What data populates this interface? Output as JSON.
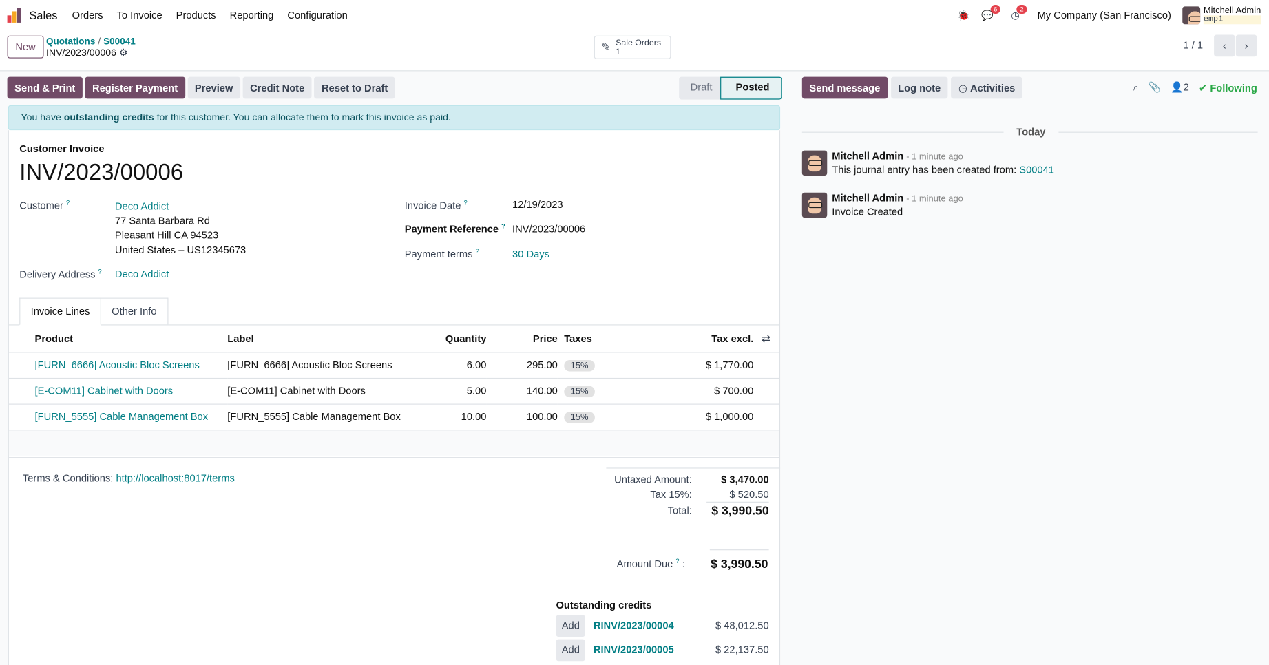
{
  "nav": {
    "app": "Sales",
    "menus": [
      "Orders",
      "To Invoice",
      "Products",
      "Reporting",
      "Configuration"
    ],
    "messages_count": "6",
    "activities_count": "2",
    "company": "My Company (San Francisco)",
    "user": "Mitchell Admin",
    "db": "emp1"
  },
  "control": {
    "new_label": "New",
    "breadcrumb": [
      "Quotations",
      "S00041"
    ],
    "current": "INV/2023/00006",
    "smart_button": {
      "label": "Sale Orders",
      "count": "1"
    },
    "pager": "1 / 1"
  },
  "actions": [
    "Send & Print",
    "Register Payment",
    "Preview",
    "Credit Note",
    "Reset to Draft"
  ],
  "status": {
    "steps": [
      "Draft",
      "Posted"
    ],
    "current": "Posted"
  },
  "alert": {
    "pre": "You have ",
    "bold": "outstanding credits",
    "post": " for this customer. You can allocate them to mark this invoice as paid."
  },
  "invoice": {
    "type": "Customer Invoice",
    "number": "INV/2023/00006",
    "customer_label": "Customer",
    "customer": "Deco Addict",
    "address": [
      "77 Santa Barbara Rd",
      "Pleasant Hill CA 94523",
      "United States – US12345673"
    ],
    "delivery_label": "Delivery Address",
    "delivery": "Deco Addict",
    "date_label": "Invoice Date",
    "date": "12/19/2023",
    "ref_label": "Payment Reference",
    "ref": "INV/2023/00006",
    "terms_label": "Payment terms",
    "terms": "30 Days"
  },
  "tabs": [
    "Invoice Lines",
    "Other Info"
  ],
  "lines": {
    "headers": [
      "Product",
      "Label",
      "Quantity",
      "Price",
      "Taxes",
      "Tax excl."
    ],
    "rows": [
      {
        "product": "[FURN_6666] Acoustic Bloc Screens",
        "label": "[FURN_6666] Acoustic Bloc Screens",
        "qty": "6.00",
        "price": "295.00",
        "tax": "15%",
        "subtotal": "$ 1,770.00"
      },
      {
        "product": "[E-COM11] Cabinet with Doors",
        "label": "[E-COM11] Cabinet with Doors",
        "qty": "5.00",
        "price": "140.00",
        "tax": "15%",
        "subtotal": "$ 700.00"
      },
      {
        "product": "[FURN_5555] Cable Management Box",
        "label": "[FURN_5555] Cable Management Box",
        "qty": "10.00",
        "price": "100.00",
        "tax": "15%",
        "subtotal": "$ 1,000.00"
      }
    ]
  },
  "terms": {
    "label": "Terms & Conditions: ",
    "url": "http://localhost:8017/terms"
  },
  "totals": {
    "untaxed_label": "Untaxed Amount:",
    "untaxed": "$ 3,470.00",
    "tax_label": "Tax 15%:",
    "tax": "$ 520.50",
    "total_label": "Total:",
    "total": "$ 3,990.50",
    "due_label": "Amount Due",
    "due": "$ 3,990.50"
  },
  "credits": {
    "title": "Outstanding credits",
    "add": "Add",
    "items": [
      {
        "ref": "RINV/2023/00004",
        "amount": "$ 48,012.50"
      },
      {
        "ref": "RINV/2023/00005",
        "amount": "$ 22,137.50"
      }
    ]
  },
  "chatter": {
    "send": "Send message",
    "log": "Log note",
    "activities": "Activities",
    "followers": "2",
    "following": "Following",
    "today": "Today",
    "messages": [
      {
        "author": "Mitchell Admin",
        "time": "- 1 minute ago",
        "body": "This journal entry has been created from: ",
        "link": "S00041"
      },
      {
        "author": "Mitchell Admin",
        "time": "- 1 minute ago",
        "body": "Invoice Created"
      }
    ]
  },
  "colors": {
    "primary": "#714b67",
    "link": "#017e84",
    "alert_bg": "#d1ecf1"
  }
}
